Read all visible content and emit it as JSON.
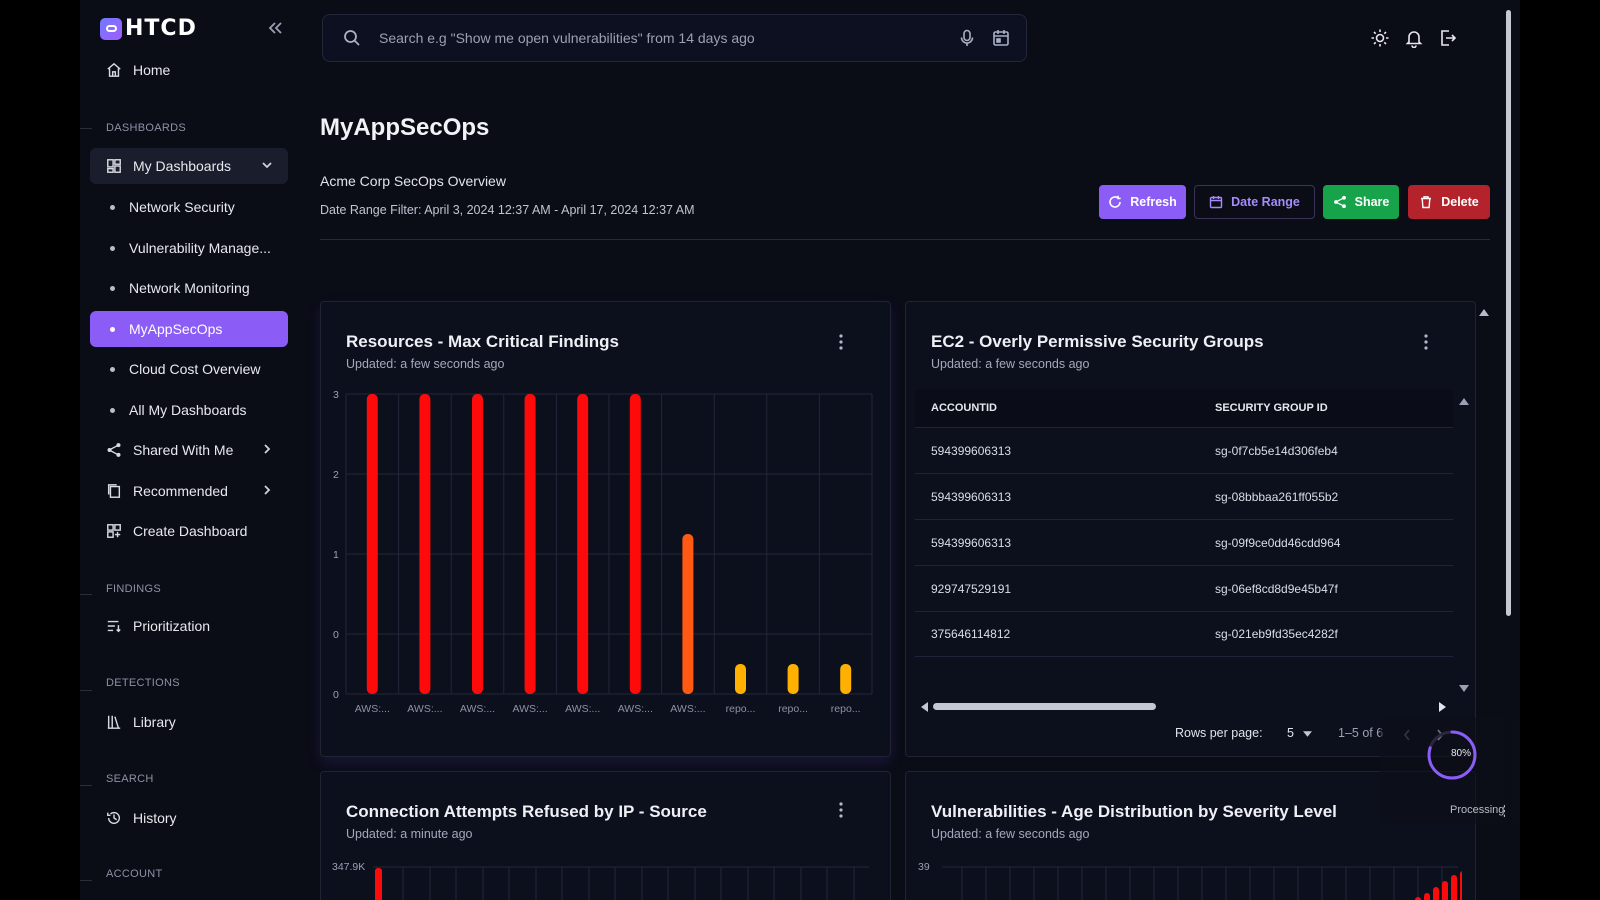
{
  "brand": {
    "name": "HTCD"
  },
  "sidebar": {
    "home": "Home",
    "sections": {
      "dashboards": "DASHBOARDS",
      "findings": "FINDINGS",
      "detections": "DETECTIONS",
      "search": "SEARCH",
      "account": "ACCOUNT"
    },
    "my_dashboards": "My Dashboards",
    "dashboards": [
      "Network Security",
      "Vulnerability Manage...",
      "Network Monitoring",
      "MyAppSecOps",
      "Cloud Cost Overview",
      "All My Dashboards"
    ],
    "selected_dashboard": "MyAppSecOps",
    "shared_with_me": "Shared With Me",
    "recommended": "Recommended",
    "create_dashboard": "Create Dashboard",
    "prioritization": "Prioritization",
    "library": "Library",
    "history": "History"
  },
  "search": {
    "placeholder": "Search e.g \"Show me open vulnerabilities\" from 14 days ago"
  },
  "page": {
    "title": "MyAppSecOps",
    "subtitle": "Acme Corp SecOps Overview",
    "date_range": "Date Range Filter: April 3, 2024 12:37 AM - April 17, 2024 12:37 AM"
  },
  "actions": {
    "refresh": "Refresh",
    "date_range": "Date Range",
    "share": "Share",
    "delete": "Delete"
  },
  "widgets": {
    "critical_findings": {
      "title": "Resources - Max Critical Findings",
      "updated": "Updated: a few seconds ago"
    },
    "security_groups": {
      "title": "EC2 - Overly Permissive Security Groups",
      "updated": "Updated: a few seconds ago",
      "columns": [
        "ACCOUNTID",
        "SECURITY GROUP ID"
      ],
      "rows": [
        [
          "594399606313",
          "sg-0f7cb5e14d306feb4"
        ],
        [
          "594399606313",
          "sg-08bbbaa261ff055b2"
        ],
        [
          "594399606313",
          "sg-09f9ce0dd46cdd964"
        ],
        [
          "929747529191",
          "sg-06ef8cd8d9e45b47f"
        ],
        [
          "375646114812",
          "sg-021eb9fd35ec4282f"
        ]
      ],
      "rows_per_page_label": "Rows per page:",
      "rows_per_page": "5",
      "range": "1–5 of 6",
      "loading_percent": "80%",
      "loading_progress": 0.8
    },
    "connection_attempts": {
      "title": "Connection Attempts Refused by IP - Source",
      "updated": "Updated: a minute ago",
      "y_top_label": "347.9K"
    },
    "vuln_age": {
      "title": "Vulnerabilities - Age Distribution by Severity Level",
      "updated": "Updated: a few seconds ago",
      "y_top_label": "39",
      "status": "Processing..."
    }
  },
  "chart_data": {
    "type": "bar",
    "categories": [
      "AWS:...",
      "AWS:...",
      "AWS:...",
      "AWS:...",
      "AWS:...",
      "AWS:...",
      "AWS:...",
      "repo...",
      "repo...",
      "repo..."
    ],
    "values": [
      3,
      3,
      3,
      3,
      3,
      3,
      1.6,
      0.3,
      0.3,
      0.3
    ],
    "ylim": [
      0,
      3
    ],
    "y_ticks": [
      "0",
      "0",
      "1",
      "2",
      "3"
    ],
    "y_tick_values": [
      0,
      0.75,
      1.75,
      2.75,
      3.75
    ],
    "colors": [
      "#ff0a0a",
      "#ff0a0a",
      "#ff0a0a",
      "#ff0a0a",
      "#ff0a0a",
      "#ff0a0a",
      "#ff5a14",
      "#ffb000",
      "#ffb000",
      "#ffb000"
    ],
    "grid": true
  }
}
